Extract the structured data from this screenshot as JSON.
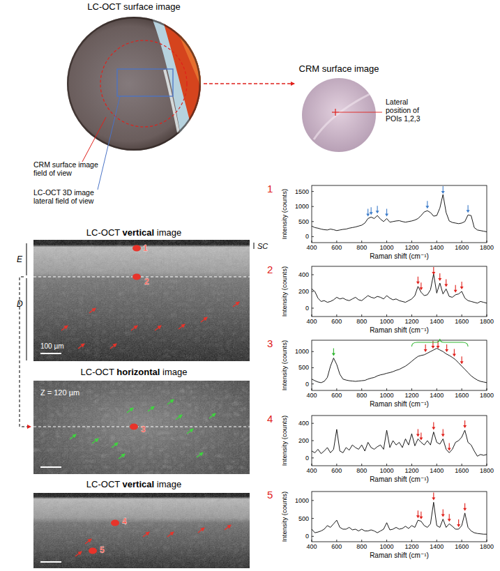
{
  "figure": {
    "surface_image": {
      "title": "LC-OCT surface image",
      "crm_fov_label": [
        "CRM surface image",
        "field of view"
      ],
      "oct_fov_label": [
        "LC-OCT 3D image",
        "lateral field of view"
      ]
    },
    "crm_image": {
      "title": "CRM surface image",
      "poi_label": [
        "Lateral",
        "position of",
        "POIs 1,2,3"
      ]
    },
    "vertical_image_1": {
      "title": [
        "LC-OCT ",
        "vertical",
        " image"
      ],
      "layers": [
        "E",
        "D",
        "SC"
      ],
      "scale_bar": "100 µm",
      "pois": [
        "1",
        "2"
      ]
    },
    "horizontal_image": {
      "title": [
        "LC-OCT ",
        "horizontal",
        " image"
      ],
      "depth": "Z = 120 µm",
      "pois": [
        "3"
      ]
    },
    "vertical_image_2": {
      "title": [
        "LC-OCT ",
        "vertical",
        " image"
      ],
      "pois": [
        "4",
        "5"
      ]
    }
  },
  "chart_data": [
    {
      "type": "line",
      "title": "1",
      "xlabel": "Raman shift (cm⁻¹)",
      "ylabel": "Intensity (counts)",
      "color": "#000000",
      "x": [
        400,
        425,
        450,
        475,
        500,
        525,
        550,
        575,
        600,
        625,
        650,
        675,
        700,
        725,
        750,
        775,
        800,
        825,
        850,
        875,
        900,
        925,
        950,
        975,
        1000,
        1025,
        1050,
        1075,
        1100,
        1125,
        1150,
        1175,
        1200,
        1225,
        1250,
        1275,
        1300,
        1325,
        1350,
        1375,
        1400,
        1425,
        1450,
        1475,
        1500,
        1525,
        1550,
        1575,
        1600,
        1625,
        1650,
        1675,
        1700,
        1725,
        1750,
        1775,
        1800
      ],
      "values": [
        350,
        300,
        280,
        250,
        230,
        220,
        250,
        230,
        200,
        220,
        240,
        250,
        280,
        300,
        320,
        350,
        380,
        450,
        600,
        650,
        600,
        700,
        580,
        500,
        600,
        480,
        500,
        520,
        530,
        500,
        480,
        500,
        520,
        550,
        600,
        700,
        820,
        860,
        800,
        680,
        700,
        950,
        1400,
        800,
        520,
        470,
        450,
        430,
        450,
        500,
        720,
        700,
        300,
        220,
        200,
        180,
        160
      ],
      "xlim": [
        400,
        1800
      ],
      "xticks": [
        400,
        600,
        800,
        1000,
        1200,
        1400,
        1600,
        1800
      ],
      "ylim": [
        -200,
        1700
      ],
      "yticks": [
        0,
        500,
        1000,
        1500
      ],
      "annotations": [
        {
          "type": "arrow",
          "color": "#3d7cc9",
          "x": [
            850,
            875,
            925,
            1000,
            1325,
            1450,
            1650
          ]
        }
      ]
    },
    {
      "type": "line",
      "title": "2",
      "xlabel": "Raman shift (cm⁻¹)",
      "ylabel": "Intensity (counts)",
      "color": "#000000",
      "x": [
        400,
        425,
        450,
        475,
        500,
        525,
        550,
        575,
        600,
        625,
        650,
        675,
        700,
        725,
        750,
        775,
        800,
        825,
        850,
        875,
        900,
        925,
        950,
        975,
        1000,
        1025,
        1050,
        1075,
        1100,
        1125,
        1150,
        1175,
        1200,
        1225,
        1250,
        1275,
        1300,
        1325,
        1350,
        1375,
        1400,
        1425,
        1450,
        1475,
        1500,
        1525,
        1550,
        1575,
        1600,
        1625,
        1650,
        1675,
        1700,
        1725,
        1750,
        1775,
        1800
      ],
      "values": [
        230,
        200,
        120,
        80,
        90,
        70,
        80,
        100,
        130,
        110,
        120,
        100,
        90,
        110,
        130,
        100,
        90,
        120,
        150,
        130,
        120,
        140,
        130,
        110,
        150,
        120,
        100,
        110,
        90,
        80,
        70,
        90,
        110,
        150,
        260,
        190,
        150,
        160,
        220,
        410,
        180,
        300,
        170,
        230,
        140,
        130,
        160,
        170,
        200,
        120,
        90,
        80,
        70,
        60,
        80,
        70,
        60
      ],
      "xlim": [
        400,
        1800
      ],
      "xticks": [
        400,
        600,
        800,
        1000,
        1200,
        1400,
        1600,
        1800
      ],
      "ylim": [
        -100,
        500
      ],
      "yticks": [
        0,
        200,
        400
      ],
      "annotations": [
        {
          "type": "arrow",
          "color": "#e0201b",
          "x": [
            1250,
            1275,
            1375,
            1425,
            1475,
            1550,
            1600
          ]
        }
      ]
    },
    {
      "type": "line",
      "title": "3",
      "xlabel": "Raman shift (cm⁻¹)",
      "ylabel": "Intensity (counts)",
      "color": "#000000",
      "x": [
        400,
        425,
        450,
        475,
        500,
        525,
        550,
        575,
        600,
        625,
        650,
        675,
        700,
        725,
        750,
        775,
        800,
        825,
        850,
        875,
        900,
        925,
        950,
        975,
        1000,
        1025,
        1050,
        1075,
        1100,
        1125,
        1150,
        1175,
        1200,
        1225,
        1250,
        1275,
        1300,
        1325,
        1350,
        1375,
        1400,
        1425,
        1450,
        1475,
        1500,
        1525,
        1550,
        1575,
        1600,
        1625,
        1650,
        1675,
        1700,
        1725,
        1750,
        1775,
        1800
      ],
      "values": [
        150,
        100,
        60,
        40,
        80,
        200,
        550,
        800,
        600,
        300,
        150,
        120,
        100,
        90,
        80,
        90,
        100,
        110,
        150,
        180,
        200,
        250,
        280,
        300,
        330,
        350,
        380,
        420,
        450,
        500,
        550,
        620,
        700,
        780,
        850,
        880,
        900,
        950,
        1000,
        1050,
        1100,
        1050,
        1000,
        930,
        880,
        820,
        750,
        650,
        550,
        450,
        350,
        250,
        180,
        120,
        80,
        60,
        40
      ],
      "xlim": [
        400,
        1800
      ],
      "xticks": [
        400,
        600,
        800,
        1000,
        1200,
        1400,
        1600,
        1800
      ],
      "ylim": [
        -200,
        1350
      ],
      "yticks": [
        0,
        500,
        1000
      ],
      "annotations": [
        {
          "type": "arrow",
          "color": "#2fb52f",
          "x": [
            575
          ]
        },
        {
          "type": "arrow",
          "color": "#e0201b",
          "x": [
            1310,
            1370,
            1410,
            1480,
            1540,
            1600
          ]
        },
        {
          "type": "bracket",
          "color": "#2fb52f",
          "x": [
            1200,
            1650
          ]
        }
      ]
    },
    {
      "type": "line",
      "title": "4",
      "xlabel": "Raman shift (cm⁻¹)",
      "ylabel": "Intensity (counts)",
      "color": "#000000",
      "x": [
        400,
        425,
        450,
        475,
        500,
        525,
        550,
        575,
        600,
        625,
        650,
        675,
        700,
        725,
        750,
        775,
        800,
        825,
        850,
        875,
        900,
        925,
        950,
        975,
        1000,
        1025,
        1050,
        1075,
        1100,
        1125,
        1150,
        1175,
        1200,
        1225,
        1250,
        1275,
        1300,
        1325,
        1350,
        1375,
        1400,
        1425,
        1450,
        1475,
        1500,
        1525,
        1550,
        1575,
        1600,
        1625,
        1650,
        1675,
        1700,
        1725,
        1750,
        1775,
        1800
      ],
      "values": [
        80,
        60,
        100,
        50,
        80,
        120,
        60,
        100,
        330,
        80,
        60,
        120,
        90,
        150,
        120,
        100,
        150,
        80,
        180,
        120,
        100,
        130,
        150,
        100,
        320,
        120,
        200,
        150,
        180,
        120,
        220,
        150,
        280,
        140,
        220,
        180,
        150,
        200,
        150,
        300,
        180,
        160,
        220,
        100,
        60,
        100,
        180,
        200,
        240,
        320,
        180,
        150,
        80,
        20,
        40,
        30,
        40
      ],
      "xlim": [
        400,
        1800
      ],
      "xticks": [
        400,
        600,
        800,
        1000,
        1200,
        1400,
        1600,
        1800
      ],
      "ylim": [
        -90,
        490
      ],
      "yticks": [
        0,
        200,
        400
      ],
      "annotations": [
        {
          "type": "arrow",
          "color": "#e0201b",
          "x": [
            1250,
            1275,
            1375,
            1450,
            1500,
            1625
          ]
        }
      ]
    },
    {
      "type": "line",
      "title": "5",
      "xlabel": "Raman shift (cm⁻¹)",
      "ylabel": "Intensity (counts)",
      "color": "#000000",
      "x": [
        400,
        425,
        450,
        475,
        500,
        525,
        550,
        575,
        600,
        625,
        650,
        675,
        700,
        725,
        750,
        775,
        800,
        825,
        850,
        875,
        900,
        925,
        950,
        975,
        1000,
        1025,
        1050,
        1075,
        1100,
        1125,
        1150,
        1175,
        1200,
        1225,
        1250,
        1275,
        1300,
        1325,
        1350,
        1375,
        1400,
        1425,
        1450,
        1475,
        1500,
        1525,
        1550,
        1575,
        1600,
        1625,
        1650,
        1675,
        1700,
        1725,
        1750,
        1775,
        1800
      ],
      "values": [
        200,
        100,
        120,
        150,
        200,
        300,
        250,
        350,
        450,
        250,
        200,
        200,
        250,
        180,
        200,
        150,
        200,
        150,
        150,
        180,
        150,
        100,
        150,
        200,
        380,
        180,
        200,
        250,
        200,
        220,
        280,
        220,
        300,
        250,
        450,
        420,
        300,
        250,
        350,
        950,
        300,
        250,
        480,
        250,
        350,
        280,
        200,
        200,
        300,
        650,
        250,
        150,
        100,
        80,
        70,
        60,
        60
      ],
      "xlim": [
        400,
        1800
      ],
      "xticks": [
        400,
        600,
        800,
        1000,
        1200,
        1400,
        1600,
        1800
      ],
      "ylim": [
        -150,
        1250
      ],
      "yticks": [
        0,
        500,
        1000
      ],
      "annotations": [
        {
          "type": "arrow",
          "color": "#e0201b",
          "x": [
            1250,
            1275,
            1375,
            1450,
            1500,
            1575,
            1625
          ]
        }
      ]
    }
  ]
}
